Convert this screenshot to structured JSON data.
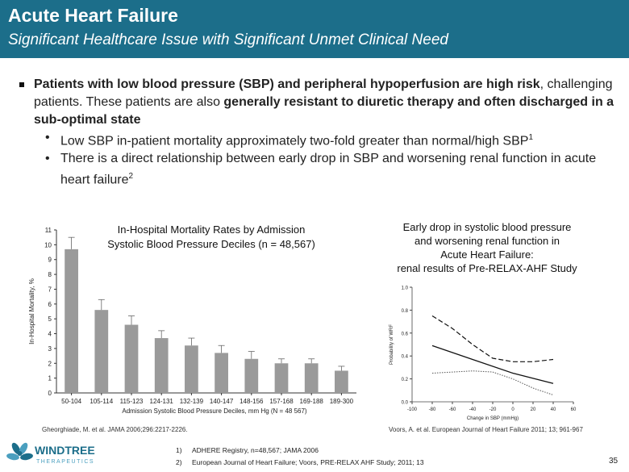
{
  "header": {
    "title": "Acute Heart Failure",
    "subtitle": "Significant Healthcare Issue with Significant Unmet Clinical Need"
  },
  "bullets": {
    "main": {
      "p1": "Patients with low blood pressure (SBP) and peripheral hypoperfusion are high risk",
      "p2": ", challenging patients. These patients are also ",
      "p3": "generally resistant to diuretic therapy and often discharged in a sub-optimal state"
    },
    "sub": [
      {
        "text": "Low SBP in-patient mortality approximately two-fold greater than normal/high SBP",
        "sup": "1"
      },
      {
        "text": "There is a direct relationship between early drop in SBP and worsening renal function in acute heart failure",
        "sup": "2"
      }
    ]
  },
  "chart_data": [
    {
      "type": "bar",
      "title": "In-Hospital Mortality Rates by Admission Systolic Blood Pressure Deciles (n = 48,567)",
      "xlabel": "Admission Systolic Blood Pressure Deciles, mm Hg (N = 48 567)",
      "ylabel": "In-Hospital Mortality, %",
      "ylim": [
        0,
        11
      ],
      "yticks": [
        "0",
        "1",
        "2",
        "3",
        "4",
        "5",
        "6",
        "7",
        "8",
        "9",
        "10",
        "11"
      ],
      "categories": [
        "50-104",
        "105-114",
        "115-123",
        "124-131",
        "132-139",
        "140-147",
        "148-156",
        "157-168",
        "169-188",
        "189-300"
      ],
      "values": [
        9.7,
        5.6,
        4.6,
        3.7,
        3.2,
        2.7,
        2.3,
        2.0,
        2.0,
        1.5
      ],
      "errors": [
        0.8,
        0.7,
        0.6,
        0.5,
        0.5,
        0.5,
        0.5,
        0.3,
        0.3,
        0.3
      ],
      "bar_color": "#9a9a9a"
    },
    {
      "type": "line",
      "title_lines": [
        "Early drop in systolic blood pressure",
        "and worsening renal function in",
        "Acute Heart Failure:",
        "renal results of Pre-RELAX-AHF Study"
      ],
      "xlabel": "Change in SBP (mmHg)",
      "ylabel": "Probability of WRF",
      "xlim": [
        -100,
        60
      ],
      "ylim": [
        0,
        1.0
      ],
      "xticks": [
        "-100",
        "-80",
        "-60",
        "-40",
        "-20",
        "0",
        "20",
        "40",
        "60"
      ],
      "yticks": [
        "0.0",
        "0.2",
        "0.4",
        "0.6",
        "0.8",
        "1.0"
      ],
      "series": [
        {
          "style": "solid",
          "x": [
            -80,
            -40,
            0,
            40
          ],
          "y": [
            0.49,
            0.37,
            0.25,
            0.16
          ]
        },
        {
          "style": "dashed",
          "x": [
            -80,
            -60,
            -40,
            -20,
            0,
            20,
            40
          ],
          "y": [
            0.75,
            0.64,
            0.5,
            0.38,
            0.35,
            0.35,
            0.37
          ]
        },
        {
          "style": "dotted",
          "x": [
            -80,
            -40,
            -20,
            0,
            20,
            40
          ],
          "y": [
            0.25,
            0.27,
            0.26,
            0.2,
            0.12,
            0.06
          ]
        }
      ]
    }
  ],
  "captions": {
    "left": "Gheorghiade, M. et al. JAMA 2006;296:2217-2226.",
    "right": "Voors, A. et al. European Journal of Heart Failure 2011; 13; 961-967"
  },
  "footnotes": [
    {
      "num": "1)",
      "text": "ADHERE Registry, n=48,567; JAMA 2006"
    },
    {
      "num": "2)",
      "text": "European Journal of Heart Failure; Voors, PRE-RELAX AHF Study; 2011; 13"
    }
  ],
  "logo": {
    "name": "WINDTREE",
    "sub": "THERAPEUTICS"
  },
  "page_number": "35",
  "colors": {
    "header_bg": "#1c6e8a",
    "logo_blue": "#1c6e8a"
  }
}
